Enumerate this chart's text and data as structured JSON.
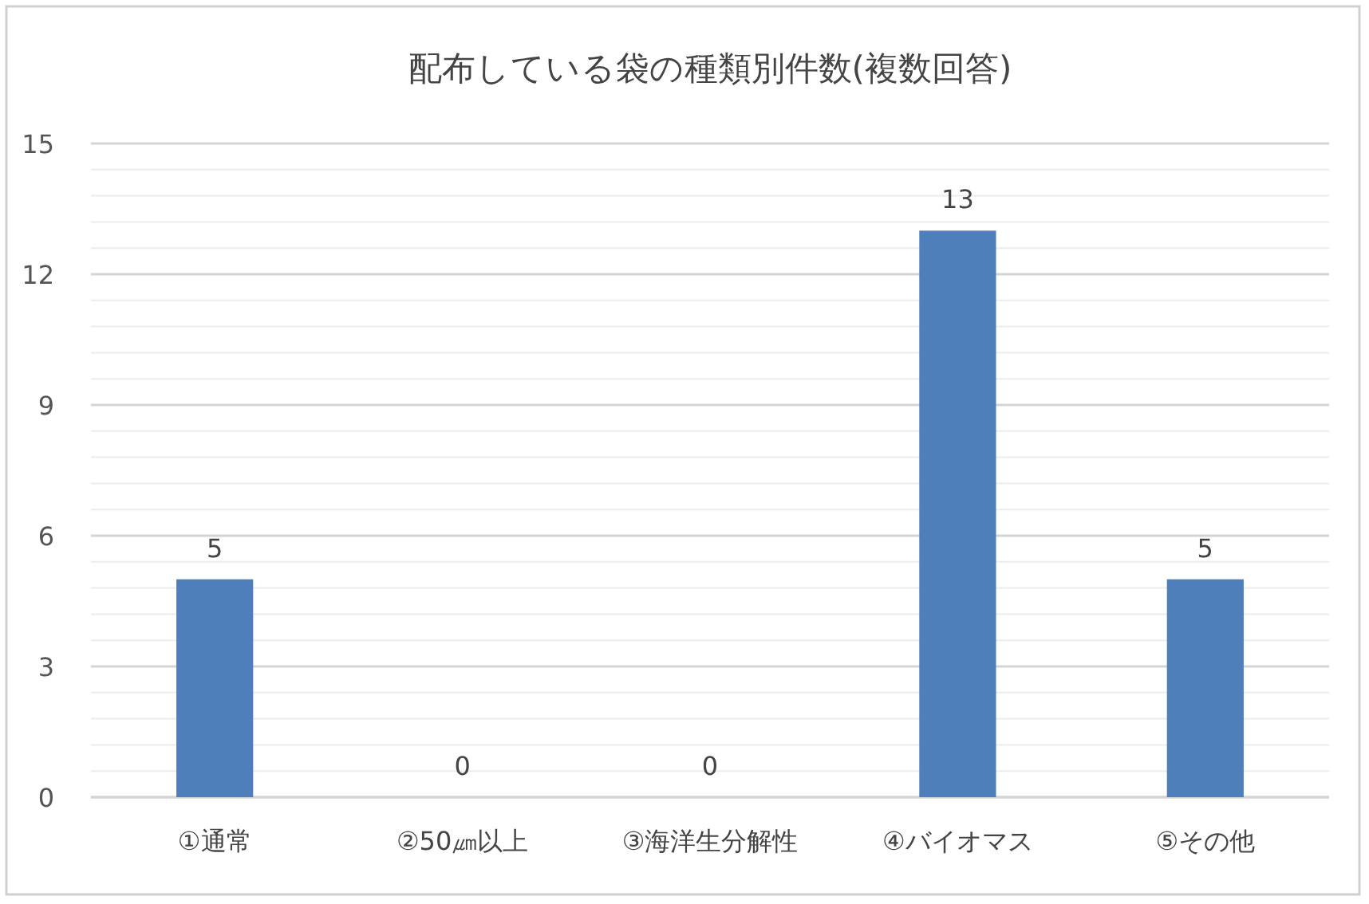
{
  "chart_data": {
    "type": "bar",
    "title": "配布している袋の種類別件数(複数回答)",
    "categories": [
      "①通常",
      "②50㎛以上",
      "③海洋生分解性",
      "④バイオマス",
      "⑤その他"
    ],
    "values": [
      5,
      0,
      0,
      13,
      5
    ],
    "color": "#4f7fbb",
    "ylim": [
      0,
      15
    ],
    "yticks": [
      0,
      {
        "value": 0.6,
        "label": null
      },
      {
        "value": 1.2,
        "label": null
      },
      {
        "value": 1.8,
        "label": null
      },
      {
        "value": 2.4,
        "label": null
      },
      3,
      {
        "value": 3.6,
        "label": null
      },
      {
        "value": 4.2,
        "label": null
      },
      {
        "value": 4.8,
        "label": null
      },
      {
        "value": 5.4,
        "label": null
      },
      6,
      {
        "value": 6.6,
        "label": null
      },
      {
        "value": 7.2,
        "label": null
      },
      {
        "value": 7.8,
        "label": null
      },
      {
        "value": 8.4,
        "label": null
      },
      9,
      {
        "value": 9.6,
        "label": null
      },
      {
        "value": 10.2,
        "label": null
      },
      {
        "value": 10.8,
        "label": null
      },
      {
        "value": 11.4,
        "label": null
      },
      12,
      {
        "value": 12.6,
        "label": null
      },
      {
        "value": 13.2,
        "label": null
      },
      {
        "value": 13.8,
        "label": null
      },
      {
        "value": 14.4,
        "label": null
      },
      15
    ],
    "grid": "y",
    "data_labels": true
  }
}
